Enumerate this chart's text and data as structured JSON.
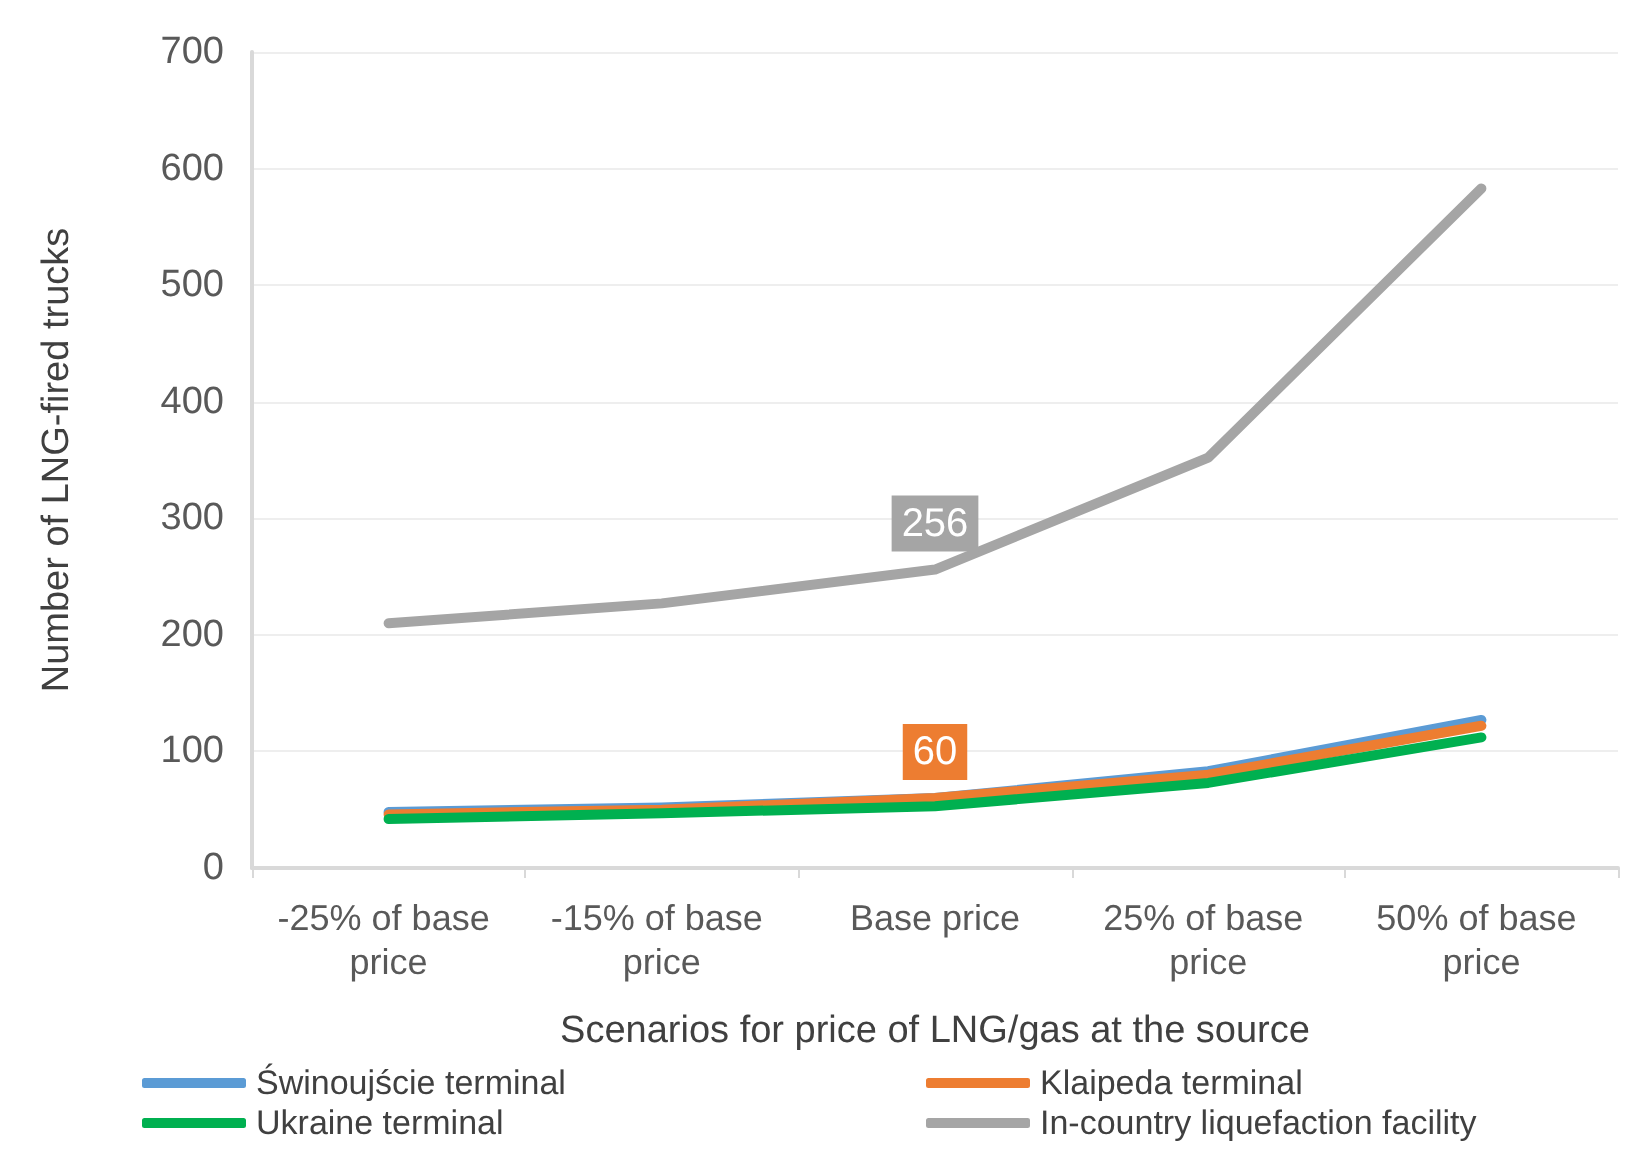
{
  "chart_data": {
    "type": "line",
    "xlabel": "Scenarios for price of LNG/gas at the source",
    "ylabel": "Number of LNG-fired trucks",
    "categories": [
      "-25% of base price",
      "-15% of base price",
      "Base price",
      "25% of base price",
      "50% of base price"
    ],
    "series": [
      {
        "name": "Świnoujście terminal",
        "color": "#5b9bd5",
        "values": [
          48,
          52,
          60,
          83,
          127
        ]
      },
      {
        "name": "Klaipeda terminal",
        "color": "#ed7d31",
        "values": [
          46,
          50,
          60,
          80,
          122
        ],
        "value_labels": [
          null,
          null,
          "60",
          null,
          null
        ]
      },
      {
        "name": "Ukraine terminal",
        "color": "#00b050",
        "values": [
          42,
          47,
          53,
          73,
          112
        ]
      },
      {
        "name": "In-country liquefaction facility",
        "color": "#a5a5a5",
        "values": [
          210,
          227,
          256,
          352,
          583
        ],
        "value_labels": [
          null,
          null,
          "256",
          null,
          null
        ]
      }
    ],
    "ylim": [
      0,
      700
    ],
    "yticks": [
      0,
      100,
      200,
      300,
      400,
      500,
      600,
      700
    ],
    "grid": "y",
    "legend": "bottom",
    "marker": "none",
    "line_style": "solid"
  }
}
